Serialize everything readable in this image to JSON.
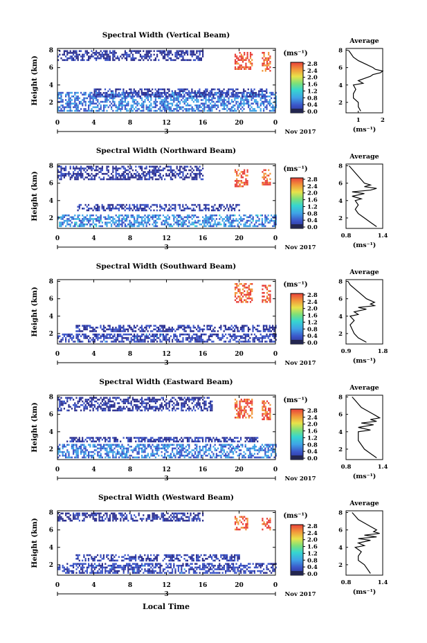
{
  "panels_title_prefix": "Spectral Width",
  "xlabel": "Local Time",
  "ylabel": "Height (km)",
  "date_tick": "3",
  "month_year": "Nov 2017",
  "colorbar_unit": "(ms⁻¹)",
  "avg_title": "Average",
  "avg_xlabel": "(ms⁻¹)",
  "chart_data": [
    {
      "type": "heatmap",
      "title": "Spectral Width (Vertical Beam)",
      "xlabel": "",
      "ylabel": "Height (km)",
      "x_ticks": [
        "0",
        "4",
        "8",
        "12",
        "16",
        "20",
        "0"
      ],
      "x_range_hours": [
        0,
        24
      ],
      "y_ticks": [
        "2",
        "4",
        "6",
        "8"
      ],
      "ylim_km": [
        0.8,
        8.2
      ],
      "colorbar": {
        "ticks": [
          "0.0",
          "0.4",
          "0.8",
          "1.2",
          "1.6",
          "2.0",
          "2.4",
          "2.8"
        ],
        "range": [
          0.0,
          3.0
        ]
      },
      "regions": [
        {
          "t0": 0,
          "t1": 24,
          "h0": 1.0,
          "h1": 3.2,
          "value": 0.7
        },
        {
          "t0": 4,
          "t1": 23,
          "h0": 2.6,
          "h1": 3.6,
          "value": 0.3
        },
        {
          "t0": 0,
          "t1": 16,
          "h0": 6.8,
          "h1": 8.0,
          "value": 0.2
        },
        {
          "t0": 19.5,
          "t1": 21.5,
          "h0": 5.8,
          "h1": 7.8,
          "value": 2.7
        },
        {
          "t0": 22.5,
          "t1": 23.5,
          "h0": 5.6,
          "h1": 7.8,
          "value": 2.6
        }
      ],
      "average": {
        "title": "Average",
        "xlim": [
          0.5,
          2.0
        ],
        "x_ticks": [
          "1",
          "2"
        ],
        "profile_h": [
          1.0,
          1.5,
          2.0,
          2.5,
          3.0,
          3.5,
          4.0,
          4.2,
          4.5,
          4.8,
          5.0,
          5.2,
          5.4,
          5.6,
          5.8,
          6.0,
          6.4,
          6.8,
          7.2,
          7.6,
          8.0
        ],
        "profile_v": [
          1.1,
          1.0,
          1.0,
          0.8,
          0.8,
          0.9,
          0.8,
          1.2,
          1.0,
          1.3,
          1.5,
          1.6,
          1.9,
          2.0,
          1.7,
          1.6,
          1.3,
          1.0,
          0.8,
          0.7,
          0.6
        ]
      }
    },
    {
      "type": "heatmap",
      "title": "Spectral Width (Northward Beam)",
      "xlabel": "",
      "ylabel": "Height (km)",
      "x_ticks": [
        "0",
        "4",
        "8",
        "12",
        "16",
        "20",
        "0"
      ],
      "x_range_hours": [
        0,
        24
      ],
      "y_ticks": [
        "2",
        "4",
        "6",
        "8"
      ],
      "ylim_km": [
        0.8,
        8.2
      ],
      "colorbar": {
        "ticks": [
          "0.0",
          "0.4",
          "0.8",
          "1.2",
          "1.6",
          "2.0",
          "2.4",
          "2.8"
        ],
        "range": [
          0.0,
          3.0
        ]
      },
      "regions": [
        {
          "t0": 0,
          "t1": 24,
          "h0": 1.0,
          "h1": 2.4,
          "value": 0.8
        },
        {
          "t0": 2,
          "t1": 20,
          "h0": 2.8,
          "h1": 3.6,
          "value": 0.3
        },
        {
          "t0": 0,
          "t1": 16,
          "h0": 6.5,
          "h1": 8.0,
          "value": 0.2
        },
        {
          "t0": 19.5,
          "t1": 21,
          "h0": 5.6,
          "h1": 7.6,
          "value": 2.6
        },
        {
          "t0": 22.5,
          "t1": 23.5,
          "h0": 5.8,
          "h1": 7.6,
          "value": 2.6
        }
      ],
      "average": {
        "title": "Average",
        "xlim": [
          0.8,
          1.4
        ],
        "x_ticks": [
          "0.8",
          "1.4"
        ],
        "profile_h": [
          1.0,
          1.5,
          2.0,
          2.5,
          3.0,
          3.5,
          4.0,
          4.2,
          4.5,
          4.8,
          5.0,
          5.2,
          5.4,
          5.6,
          5.8,
          6.0,
          6.4,
          6.8,
          7.2,
          7.6,
          8.0
        ],
        "profile_v": [
          1.3,
          1.2,
          1.1,
          1.0,
          0.95,
          1.0,
          0.95,
          1.05,
          0.9,
          1.1,
          0.9,
          1.2,
          1.3,
          1.1,
          1.2,
          1.1,
          1.05,
          1.0,
          0.95,
          0.9,
          0.85
        ]
      }
    },
    {
      "type": "heatmap",
      "title": "Spectral Width (Southward Beam)",
      "xlabel": "",
      "ylabel": "Height (km)",
      "x_ticks": [
        "0",
        "4",
        "8",
        "12",
        "16",
        "20",
        "0"
      ],
      "x_range_hours": [
        0,
        24
      ],
      "y_ticks": [
        "2",
        "4",
        "6",
        "8"
      ],
      "ylim_km": [
        0.8,
        8.2
      ],
      "colorbar": {
        "ticks": [
          "0.0",
          "0.4",
          "0.8",
          "1.2",
          "1.6",
          "2.0",
          "2.4",
          "2.8"
        ],
        "range": [
          0.0,
          3.0
        ]
      },
      "regions": [
        {
          "t0": 0,
          "t1": 24,
          "h0": 1.0,
          "h1": 2.0,
          "value": 0.4
        },
        {
          "t0": 2,
          "t1": 24,
          "h0": 2.2,
          "h1": 3.0,
          "value": 0.3
        },
        {
          "t0": 19.5,
          "t1": 21.5,
          "h0": 5.6,
          "h1": 7.8,
          "value": 2.6
        },
        {
          "t0": 22.5,
          "t1": 23.5,
          "h0": 5.6,
          "h1": 7.6,
          "value": 2.7
        }
      ],
      "average": {
        "title": "Average",
        "xlim": [
          0.9,
          1.8
        ],
        "x_ticks": [
          "0.9",
          "1.8"
        ],
        "profile_h": [
          1.0,
          1.5,
          2.0,
          2.5,
          3.0,
          3.5,
          4.0,
          4.2,
          4.5,
          4.8,
          5.0,
          5.2,
          5.4,
          5.6,
          5.8,
          6.0,
          6.4,
          6.8,
          7.2,
          7.6,
          8.0
        ],
        "profile_v": [
          1.4,
          1.2,
          1.1,
          1.05,
          1.0,
          1.1,
          1.0,
          1.2,
          1.1,
          1.4,
          1.2,
          1.6,
          1.5,
          1.6,
          1.5,
          1.4,
          1.3,
          1.2,
          1.1,
          1.0,
          0.95
        ]
      }
    },
    {
      "type": "heatmap",
      "title": "Spectral Width (Eastward Beam)",
      "xlabel": "",
      "ylabel": "Height (km)",
      "x_ticks": [
        "0",
        "4",
        "8",
        "12",
        "16",
        "20",
        "0"
      ],
      "x_range_hours": [
        0,
        24
      ],
      "y_ticks": [
        "2",
        "4",
        "6",
        "8"
      ],
      "ylim_km": [
        0.8,
        8.2
      ],
      "colorbar": {
        "ticks": [
          "0.0",
          "0.4",
          "0.8",
          "1.2",
          "1.6",
          "2.0",
          "2.4",
          "2.8"
        ],
        "range": [
          0.0,
          3.0
        ]
      },
      "regions": [
        {
          "t0": 0,
          "t1": 24,
          "h0": 1.0,
          "h1": 2.6,
          "value": 0.7
        },
        {
          "t0": 1,
          "t1": 22,
          "h0": 2.8,
          "h1": 3.4,
          "value": 0.3
        },
        {
          "t0": 0,
          "t1": 17,
          "h0": 6.4,
          "h1": 8.0,
          "value": 0.2
        },
        {
          "t0": 19.5,
          "t1": 21.5,
          "h0": 5.6,
          "h1": 7.8,
          "value": 2.6
        },
        {
          "t0": 22.5,
          "t1": 23.5,
          "h0": 5.4,
          "h1": 7.6,
          "value": 2.6
        }
      ],
      "average": {
        "title": "Average",
        "xlim": [
          0.8,
          1.4
        ],
        "x_ticks": [
          "0.8",
          "1.4"
        ],
        "profile_h": [
          1.0,
          1.5,
          2.0,
          2.5,
          3.0,
          3.5,
          4.0,
          4.2,
          4.5,
          4.8,
          5.0,
          5.2,
          5.4,
          5.6,
          5.8,
          6.0,
          6.4,
          6.8,
          7.2,
          7.6,
          8.0
        ],
        "profile_v": [
          1.3,
          1.2,
          1.1,
          1.05,
          1.0,
          1.0,
          1.0,
          1.2,
          1.0,
          1.25,
          1.05,
          1.3,
          1.2,
          1.35,
          1.3,
          1.25,
          1.15,
          1.05,
          1.0,
          0.95,
          0.9
        ]
      }
    },
    {
      "type": "heatmap",
      "title": "Spectral Width (Westward Beam)",
      "xlabel": "Local Time",
      "ylabel": "Height (km)",
      "x_ticks": [
        "0",
        "4",
        "8",
        "12",
        "16",
        "20",
        "0"
      ],
      "x_range_hours": [
        0,
        24
      ],
      "y_ticks": [
        "2",
        "4",
        "6",
        "8"
      ],
      "ylim_km": [
        0.8,
        8.2
      ],
      "colorbar": {
        "ticks": [
          "0.0",
          "0.4",
          "0.8",
          "1.2",
          "1.6",
          "2.0",
          "2.4",
          "2.8"
        ],
        "range": [
          0.0,
          3.0
        ]
      },
      "regions": [
        {
          "t0": 0,
          "t1": 24,
          "h0": 1.0,
          "h1": 2.2,
          "value": 0.4
        },
        {
          "t0": 2,
          "t1": 20,
          "h0": 2.4,
          "h1": 3.2,
          "value": 0.3
        },
        {
          "t0": 0,
          "t1": 16,
          "h0": 7.0,
          "h1": 8.0,
          "value": 0.2
        },
        {
          "t0": 19.5,
          "t1": 21,
          "h0": 6.0,
          "h1": 7.6,
          "value": 2.6
        },
        {
          "t0": 22.5,
          "t1": 23.5,
          "h0": 6.0,
          "h1": 7.4,
          "value": 2.6
        }
      ],
      "average": {
        "title": "Average",
        "xlim": [
          0.8,
          1.4
        ],
        "x_ticks": [
          "0.8",
          "1.4"
        ],
        "profile_h": [
          1.0,
          1.5,
          2.0,
          2.5,
          3.0,
          3.5,
          4.0,
          4.2,
          4.5,
          4.8,
          5.0,
          5.2,
          5.4,
          5.6,
          5.8,
          6.0,
          6.4,
          6.8,
          7.2,
          7.6,
          8.0
        ],
        "profile_v": [
          1.2,
          1.15,
          1.1,
          1.0,
          1.0,
          1.05,
          0.95,
          1.1,
          1.0,
          1.2,
          1.0,
          1.3,
          1.1,
          1.35,
          1.25,
          1.3,
          1.2,
          1.1,
          1.0,
          0.95,
          0.9
        ]
      }
    }
  ]
}
